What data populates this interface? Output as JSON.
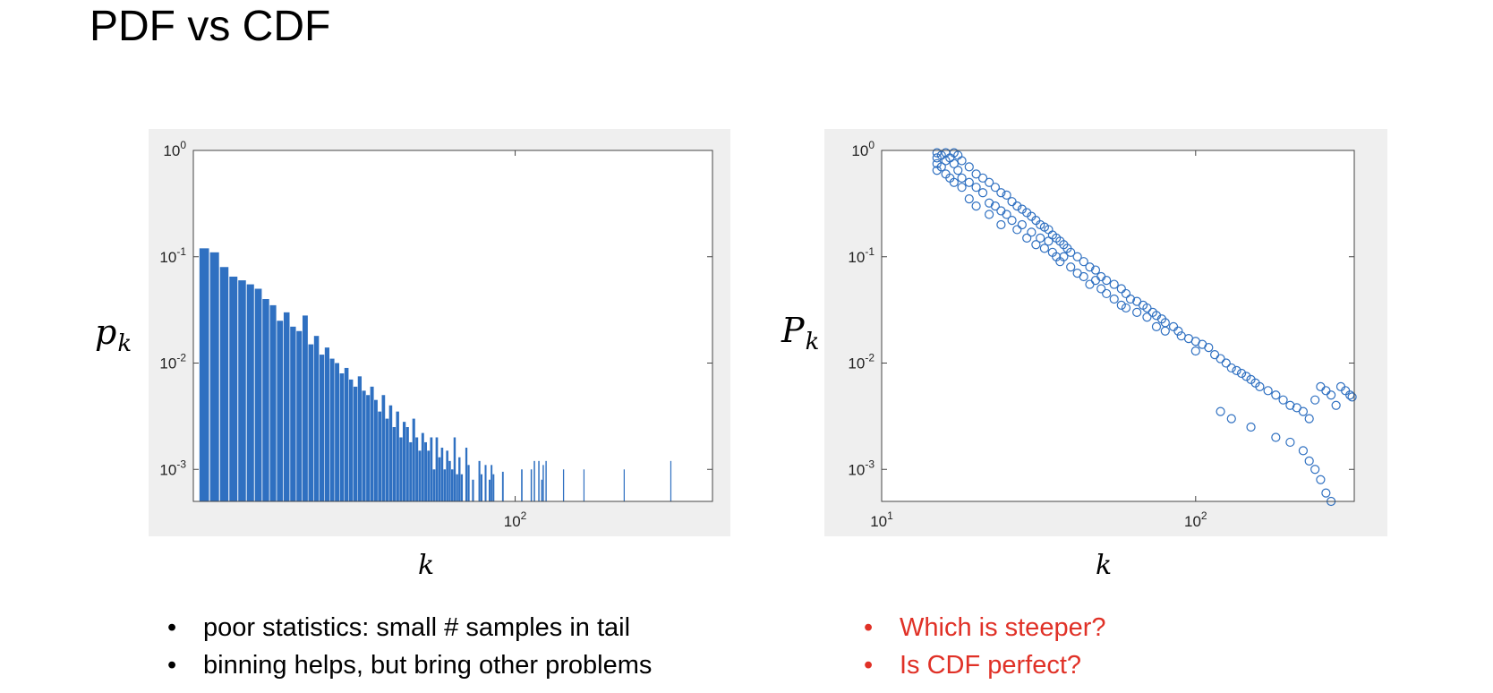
{
  "page": {
    "title": "PDF vs CDF",
    "left_bullets": [
      "poor statistics: small # samples in tail",
      "binning helps, but bring other problems"
    ],
    "right_bullets": [
      "Which is steeper?",
      "Is CDF perfect?"
    ],
    "accent_color": "#e03127",
    "data_color": "#2f70c1"
  },
  "chart_data": [
    {
      "type": "bar",
      "scale": "log-log",
      "xlabel": "k",
      "ylabel": "p_k",
      "xlim": [
        15,
        320
      ],
      "ylim": [
        0.0005,
        1
      ],
      "xticks": [
        {
          "value": 100,
          "label": "10^2"
        }
      ],
      "yticks": [
        {
          "value": 1,
          "label": "10^0"
        },
        {
          "value": 0.1,
          "label": "10^-1"
        },
        {
          "value": 0.01,
          "label": "10^-2"
        },
        {
          "value": 0.001,
          "label": "10^-3"
        }
      ],
      "grid": false,
      "x": [
        16,
        17,
        18,
        19,
        20,
        21,
        22,
        23,
        24,
        25,
        26,
        27,
        28,
        29,
        30,
        31,
        32,
        33,
        34,
        35,
        36,
        37,
        38,
        39,
        40,
        41,
        42,
        43,
        44,
        45,
        46,
        47,
        48,
        49,
        50,
        51,
        52,
        53,
        54,
        55,
        56,
        57,
        58,
        59,
        60,
        61,
        62,
        63,
        64,
        65,
        66,
        67,
        68,
        69,
        70,
        71,
        72,
        73,
        75,
        76,
        78,
        81,
        82,
        84,
        86,
        87,
        88,
        93,
        104,
        110,
        112,
        115,
        117,
        118,
        120,
        133,
        150,
        190,
        250
      ],
      "values": [
        0.12,
        0.11,
        0.08,
        0.065,
        0.06,
        0.055,
        0.05,
        0.04,
        0.035,
        0.025,
        0.03,
        0.022,
        0.02,
        0.028,
        0.015,
        0.018,
        0.012,
        0.014,
        0.011,
        0.01,
        0.008,
        0.009,
        0.007,
        0.006,
        0.0075,
        0.0055,
        0.005,
        0.006,
        0.0045,
        0.0035,
        0.005,
        0.003,
        0.004,
        0.0025,
        0.0035,
        0.002,
        0.0028,
        0.0025,
        0.0018,
        0.003,
        0.002,
        0.0015,
        0.0022,
        0.0018,
        0.0015,
        0.002,
        0.001,
        0.002,
        0.0013,
        0.0016,
        0.001,
        0.0015,
        0.0012,
        0.001,
        0.002,
        0.0009,
        0.0013,
        0.0009,
        0.0016,
        0.0011,
        0.0008,
        0.0012,
        0.0009,
        0.0011,
        0.0008,
        0.0011,
        0.0009,
        0.00095,
        0.001,
        0.001,
        0.0012,
        0.0012,
        0.0008,
        0.0011,
        0.0012,
        0.001,
        0.001,
        0.001,
        0.0012
      ]
    },
    {
      "type": "scatter",
      "scale": "log-log",
      "marker": "open-circle",
      "xlabel": "k",
      "ylabel": "P_k",
      "xlim": [
        10,
        320
      ],
      "ylim": [
        0.0005,
        1
      ],
      "xticks": [
        {
          "value": 10,
          "label": "10^1"
        },
        {
          "value": 100,
          "label": "10^2"
        }
      ],
      "yticks": [
        {
          "value": 1,
          "label": "10^0"
        },
        {
          "value": 0.1,
          "label": "10^-1"
        },
        {
          "value": 0.01,
          "label": "10^-2"
        },
        {
          "value": 0.001,
          "label": "10^-3"
        }
      ],
      "grid": false,
      "points": [
        [
          15,
          0.95
        ],
        [
          15,
          0.85
        ],
        [
          15,
          0.75
        ],
        [
          15,
          0.65
        ],
        [
          15.5,
          0.9
        ],
        [
          15.5,
          0.7
        ],
        [
          16,
          0.95
        ],
        [
          16,
          0.8
        ],
        [
          16,
          0.6
        ],
        [
          16.5,
          0.85
        ],
        [
          16.5,
          0.55
        ],
        [
          17,
          0.95
        ],
        [
          17,
          0.75
        ],
        [
          17,
          0.5
        ],
        [
          17.5,
          0.9
        ],
        [
          17.5,
          0.65
        ],
        [
          18,
          0.8
        ],
        [
          18,
          0.55
        ],
        [
          18,
          0.45
        ],
        [
          19,
          0.7
        ],
        [
          19,
          0.5
        ],
        [
          19,
          0.35
        ],
        [
          20,
          0.6
        ],
        [
          20,
          0.45
        ],
        [
          20,
          0.3
        ],
        [
          21,
          0.55
        ],
        [
          21,
          0.4
        ],
        [
          22,
          0.5
        ],
        [
          22,
          0.32
        ],
        [
          22,
          0.25
        ],
        [
          23,
          0.45
        ],
        [
          23,
          0.3
        ],
        [
          24,
          0.4
        ],
        [
          24,
          0.27
        ],
        [
          24,
          0.2
        ],
        [
          25,
          0.38
        ],
        [
          25,
          0.25
        ],
        [
          26,
          0.33
        ],
        [
          26,
          0.22
        ],
        [
          27,
          0.3
        ],
        [
          27,
          0.18
        ],
        [
          28,
          0.28
        ],
        [
          28,
          0.2
        ],
        [
          29,
          0.26
        ],
        [
          29,
          0.15
        ],
        [
          30,
          0.24
        ],
        [
          30,
          0.17
        ],
        [
          31,
          0.22
        ],
        [
          31,
          0.13
        ],
        [
          32,
          0.2
        ],
        [
          32,
          0.15
        ],
        [
          33,
          0.19
        ],
        [
          33,
          0.12
        ],
        [
          34,
          0.18
        ],
        [
          34,
          0.14
        ],
        [
          35,
          0.16
        ],
        [
          35,
          0.11
        ],
        [
          36,
          0.15
        ],
        [
          36,
          0.1
        ],
        [
          37,
          0.14
        ],
        [
          37,
          0.09
        ],
        [
          38,
          0.13
        ],
        [
          38,
          0.1
        ],
        [
          39,
          0.12
        ],
        [
          40,
          0.11
        ],
        [
          40,
          0.08
        ],
        [
          42,
          0.1
        ],
        [
          42,
          0.07
        ],
        [
          44,
          0.09
        ],
        [
          44,
          0.065
        ],
        [
          46,
          0.08
        ],
        [
          46,
          0.055
        ],
        [
          48,
          0.075
        ],
        [
          48,
          0.06
        ],
        [
          50,
          0.065
        ],
        [
          50,
          0.05
        ],
        [
          52,
          0.06
        ],
        [
          52,
          0.045
        ],
        [
          55,
          0.055
        ],
        [
          55,
          0.04
        ],
        [
          58,
          0.05
        ],
        [
          58,
          0.035
        ],
        [
          60,
          0.045
        ],
        [
          60,
          0.033
        ],
        [
          62,
          0.04
        ],
        [
          65,
          0.038
        ],
        [
          65,
          0.03
        ],
        [
          68,
          0.035
        ],
        [
          70,
          0.033
        ],
        [
          70,
          0.027
        ],
        [
          73,
          0.03
        ],
        [
          75,
          0.028
        ],
        [
          75,
          0.022
        ],
        [
          78,
          0.026
        ],
        [
          80,
          0.024
        ],
        [
          80,
          0.02
        ],
        [
          85,
          0.022
        ],
        [
          88,
          0.02
        ],
        [
          90,
          0.018
        ],
        [
          95,
          0.017
        ],
        [
          100,
          0.016
        ],
        [
          100,
          0.013
        ],
        [
          105,
          0.015
        ],
        [
          110,
          0.014
        ],
        [
          115,
          0.012
        ],
        [
          120,
          0.011
        ],
        [
          125,
          0.01
        ],
        [
          130,
          0.009
        ],
        [
          135,
          0.0085
        ],
        [
          140,
          0.008
        ],
        [
          145,
          0.0075
        ],
        [
          150,
          0.007
        ],
        [
          155,
          0.0065
        ],
        [
          160,
          0.006
        ],
        [
          170,
          0.0055
        ],
        [
          180,
          0.005
        ],
        [
          190,
          0.0045
        ],
        [
          200,
          0.004
        ],
        [
          210,
          0.0038
        ],
        [
          220,
          0.0035
        ],
        [
          230,
          0.003
        ],
        [
          240,
          0.0045
        ],
        [
          250,
          0.006
        ],
        [
          260,
          0.0055
        ],
        [
          270,
          0.005
        ],
        [
          280,
          0.004
        ],
        [
          290,
          0.006
        ],
        [
          300,
          0.0055
        ],
        [
          310,
          0.005
        ],
        [
          315,
          0.0048
        ],
        [
          120,
          0.0035
        ],
        [
          130,
          0.003
        ],
        [
          150,
          0.0025
        ],
        [
          180,
          0.002
        ],
        [
          200,
          0.0018
        ],
        [
          220,
          0.0015
        ],
        [
          230,
          0.0012
        ],
        [
          240,
          0.001
        ],
        [
          250,
          0.0008
        ],
        [
          260,
          0.0006
        ],
        [
          270,
          0.0005
        ]
      ]
    }
  ]
}
